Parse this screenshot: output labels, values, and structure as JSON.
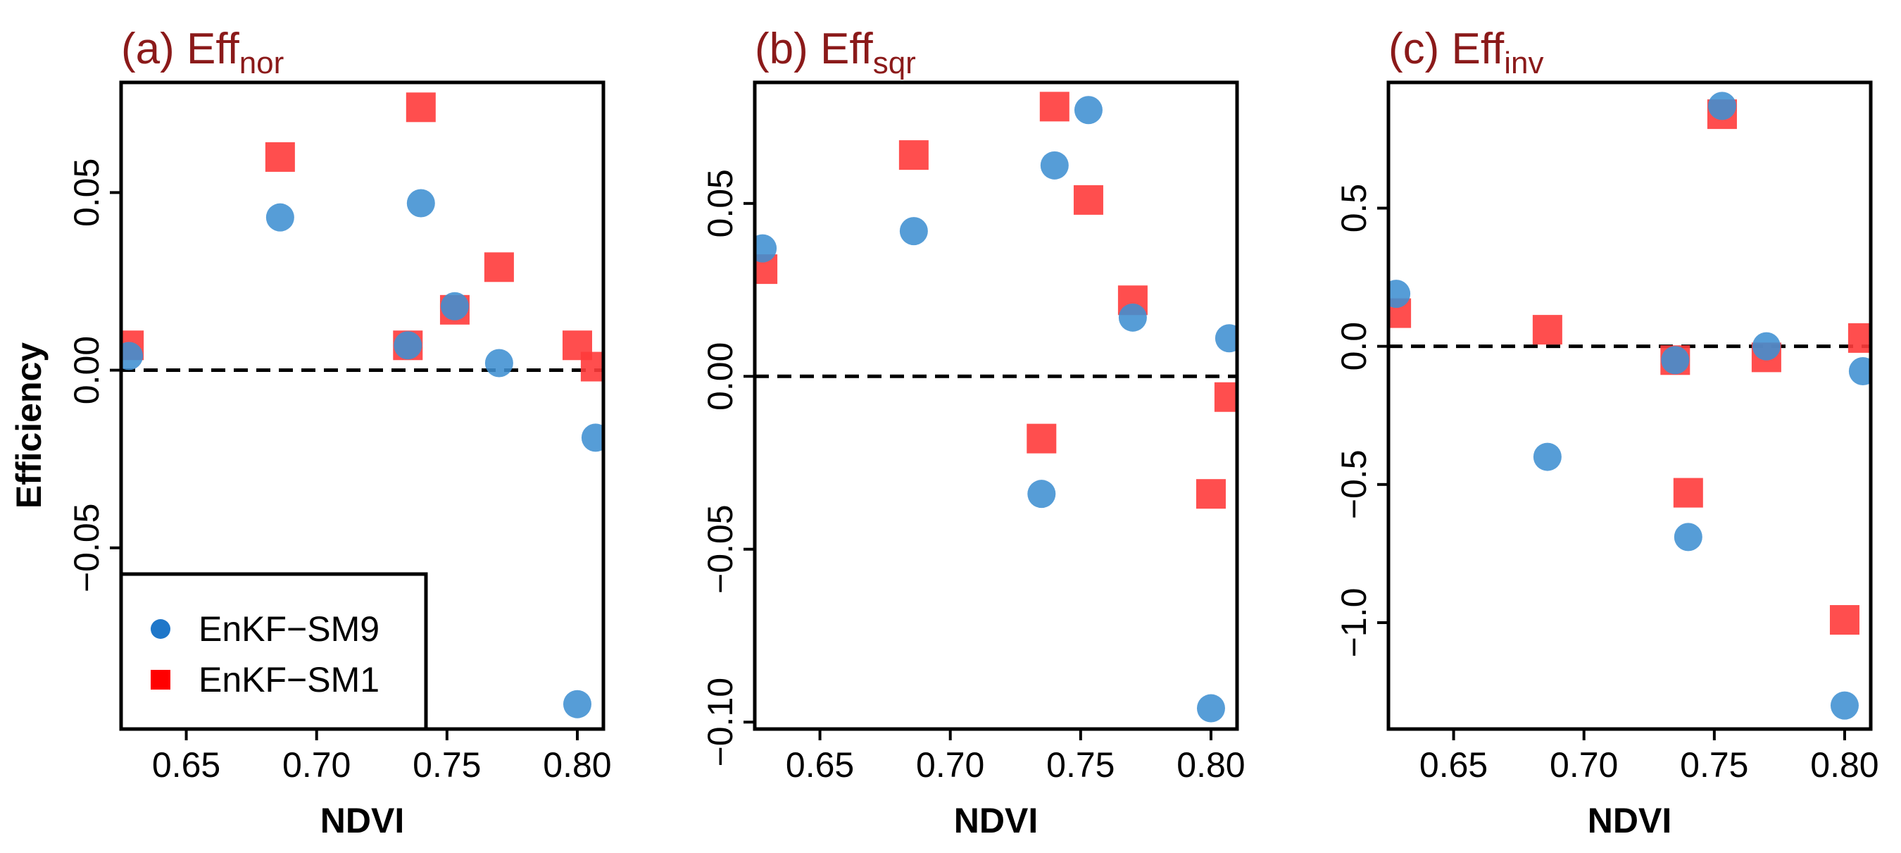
{
  "colors": {
    "title": "#8B1A1A",
    "enkf_sm9": "#3F8FD2",
    "enkf_sm1": "#FF3B3B",
    "legend_sm9": "#1F77C9",
    "legend_sm1": "#FF0000"
  },
  "legend": {
    "items": [
      {
        "label": "EnKF−SM9",
        "marker": "circle"
      },
      {
        "label": "EnKF−SM1",
        "marker": "square"
      }
    ]
  },
  "chart_data": [
    {
      "type": "scatter",
      "title_main": "(a) Eff",
      "title_sub": "nor",
      "xlabel": "NDVI",
      "ylabel": "Efficiency",
      "xlim": [
        0.625,
        0.81
      ],
      "ylim": [
        -0.101,
        0.081
      ],
      "xticks": [
        0.65,
        0.7,
        0.75,
        0.8
      ],
      "xtick_labels": [
        "0.65",
        "0.70",
        "0.75",
        "0.80"
      ],
      "yticks": [
        -0.05,
        0.0,
        0.05
      ],
      "ytick_labels": [
        "−0.05",
        "0.00",
        "0.05"
      ],
      "reference_line": 0,
      "series": [
        {
          "name": "EnKF−SM9",
          "marker": "circle",
          "x": [
            0.628,
            0.686,
            0.735,
            0.74,
            0.753,
            0.77,
            0.8,
            0.807
          ],
          "y": [
            0.004,
            0.043,
            0.007,
            0.047,
            0.018,
            0.002,
            -0.094,
            -0.019
          ]
        },
        {
          "name": "EnKF−SM1",
          "marker": "square",
          "x": [
            0.628,
            0.686,
            0.735,
            0.74,
            0.753,
            0.77,
            0.8,
            0.807
          ],
          "y": [
            0.007,
            0.06,
            0.007,
            0.074,
            0.017,
            0.029,
            0.007,
            0.001
          ]
        }
      ]
    },
    {
      "type": "scatter",
      "title_main": "(b) Eff",
      "title_sub": "sqr",
      "xlabel": "NDVI",
      "ylabel": "",
      "xlim": [
        0.625,
        0.81
      ],
      "ylim": [
        -0.102,
        0.085
      ],
      "xticks": [
        0.65,
        0.7,
        0.75,
        0.8
      ],
      "xtick_labels": [
        "0.65",
        "0.70",
        "0.75",
        "0.80"
      ],
      "yticks": [
        -0.1,
        -0.05,
        0.0,
        0.05
      ],
      "ytick_labels": [
        "−0.10",
        "−0.05",
        "0.00",
        "0.05"
      ],
      "reference_line": 0,
      "series": [
        {
          "name": "EnKF−SM9",
          "marker": "circle",
          "x": [
            0.628,
            0.686,
            0.735,
            0.74,
            0.753,
            0.77,
            0.8,
            0.807
          ],
          "y": [
            0.037,
            0.042,
            -0.034,
            0.061,
            0.077,
            0.017,
            -0.096,
            0.011
          ]
        },
        {
          "name": "EnKF−SM1",
          "marker": "square",
          "x": [
            0.628,
            0.686,
            0.735,
            0.74,
            0.753,
            0.77,
            0.8,
            0.807
          ],
          "y": [
            0.031,
            0.064,
            -0.018,
            0.078,
            0.051,
            0.022,
            -0.034,
            -0.006
          ]
        }
      ]
    },
    {
      "type": "scatter",
      "title_main": "(c) Eff",
      "title_sub": "inv",
      "xlabel": "NDVI",
      "ylabel": "",
      "xlim": [
        0.625,
        0.81
      ],
      "ylim": [
        -1.385,
        0.955
      ],
      "xticks": [
        0.65,
        0.7,
        0.75,
        0.8
      ],
      "xtick_labels": [
        "0.65",
        "0.70",
        "0.75",
        "0.80"
      ],
      "yticks": [
        -1.0,
        -0.5,
        0.0,
        0.5
      ],
      "ytick_labels": [
        "−1.0",
        "−0.5",
        "0.0",
        "0.5"
      ],
      "reference_line": 0,
      "series": [
        {
          "name": "EnKF−SM9",
          "marker": "circle",
          "x": [
            0.628,
            0.686,
            0.735,
            0.74,
            0.753,
            0.77,
            0.8,
            0.807
          ],
          "y": [
            0.19,
            -0.4,
            -0.05,
            -0.69,
            0.87,
            0.0,
            -1.3,
            -0.09
          ]
        },
        {
          "name": "EnKF−SM1",
          "marker": "square",
          "x": [
            0.628,
            0.686,
            0.735,
            0.74,
            0.753,
            0.77,
            0.8,
            0.807
          ],
          "y": [
            0.12,
            0.06,
            -0.05,
            -0.53,
            0.84,
            -0.04,
            -0.99,
            0.03
          ]
        }
      ]
    }
  ]
}
